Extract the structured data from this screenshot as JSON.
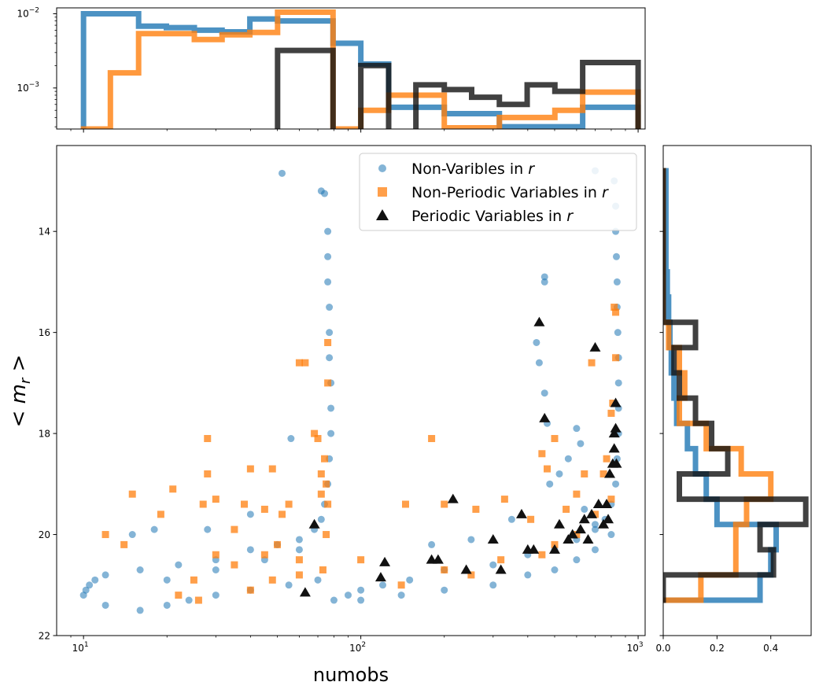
{
  "chart_data": {
    "type": "scatter",
    "xlabel": "numobs",
    "ylabel": "< m_r >",
    "xscale": "log",
    "xlim": [
      8,
      1060
    ],
    "ylim": [
      22,
      12.3
    ],
    "y_inverted": true,
    "grid": false,
    "legend_placement": "top-right",
    "x_ticks": [
      {
        "value": 10,
        "label": "10"
      },
      {
        "value": 100,
        "label": "10"
      },
      {
        "value": 1000,
        "label": "10"
      }
    ],
    "x_tick_exponents": [
      "1",
      "2",
      "3"
    ],
    "y_ticks": [
      14,
      16,
      18,
      20,
      22
    ],
    "colors": {
      "non_var": "#1f77b4",
      "non_per": "#ff7f0e",
      "periodic": "#111111"
    },
    "legend": [
      {
        "prefix": "Non-Varibles in ",
        "var": "r",
        "key": "non_var",
        "marker": "circle"
      },
      {
        "prefix": "Non-Periodic Variables in ",
        "var": "r",
        "key": "non_per",
        "marker": "square"
      },
      {
        "prefix": "Periodic Variables in ",
        "var": "r",
        "key": "periodic",
        "marker": "triangle"
      }
    ],
    "series_points": {
      "non_var": [
        [
          52,
          12.85
        ],
        [
          72,
          13.2
        ],
        [
          74,
          13.25
        ],
        [
          76,
          14.0
        ],
        [
          76,
          14.5
        ],
        [
          76,
          15.0
        ],
        [
          77,
          15.5
        ],
        [
          77,
          16.0
        ],
        [
          77,
          16.5
        ],
        [
          78,
          17.0
        ],
        [
          78,
          17.5
        ],
        [
          78,
          18.0
        ],
        [
          77,
          18.5
        ],
        [
          76,
          19.0
        ],
        [
          74,
          19.4
        ],
        [
          72,
          19.7
        ],
        [
          68,
          19.9
        ],
        [
          60,
          20.1
        ],
        [
          50,
          20.2
        ],
        [
          40,
          20.3
        ],
        [
          30,
          20.5
        ],
        [
          22,
          20.6
        ],
        [
          16,
          20.7
        ],
        [
          12,
          20.8
        ],
        [
          11,
          20.9
        ],
        [
          10.5,
          21.0
        ],
        [
          10.2,
          21.1
        ],
        [
          10,
          21.2
        ],
        [
          12,
          21.4
        ],
        [
          16,
          21.5
        ],
        [
          20,
          21.4
        ],
        [
          24,
          21.3
        ],
        [
          30,
          21.2
        ],
        [
          40,
          21.1
        ],
        [
          55,
          21.0
        ],
        [
          70,
          20.9
        ],
        [
          56,
          18.1
        ],
        [
          40,
          19.6
        ],
        [
          28,
          19.9
        ],
        [
          18,
          19.9
        ],
        [
          15,
          20.0
        ],
        [
          20,
          20.9
        ],
        [
          30,
          20.7
        ],
        [
          45,
          20.5
        ],
        [
          60,
          20.3
        ],
        [
          700,
          12.8
        ],
        [
          820,
          13.0
        ],
        [
          830,
          13.5
        ],
        [
          830,
          14.0
        ],
        [
          835,
          14.5
        ],
        [
          840,
          15.0
        ],
        [
          840,
          15.5
        ],
        [
          845,
          16.0
        ],
        [
          850,
          16.5
        ],
        [
          850,
          17.0
        ],
        [
          850,
          17.5
        ],
        [
          850,
          18.0
        ],
        [
          840,
          18.5
        ],
        [
          830,
          19.0
        ],
        [
          800,
          19.4
        ],
        [
          760,
          19.7
        ],
        [
          700,
          19.9
        ],
        [
          600,
          20.1
        ],
        [
          500,
          20.3
        ],
        [
          400,
          20.4
        ],
        [
          300,
          20.6
        ],
        [
          200,
          20.7
        ],
        [
          150,
          20.9
        ],
        [
          120,
          21.0
        ],
        [
          100,
          21.1
        ],
        [
          90,
          21.2
        ],
        [
          80,
          21.3
        ],
        [
          100,
          21.3
        ],
        [
          140,
          21.2
        ],
        [
          200,
          21.1
        ],
        [
          300,
          21.0
        ],
        [
          400,
          20.8
        ],
        [
          500,
          20.7
        ],
        [
          600,
          20.5
        ],
        [
          700,
          20.3
        ],
        [
          800,
          20.0
        ],
        [
          460,
          14.9
        ],
        [
          460,
          15.0
        ],
        [
          430,
          16.2
        ],
        [
          440,
          16.6
        ],
        [
          460,
          17.2
        ],
        [
          470,
          17.8
        ],
        [
          600,
          17.9
        ],
        [
          620,
          18.2
        ],
        [
          560,
          18.5
        ],
        [
          520,
          18.8
        ],
        [
          480,
          19.0
        ],
        [
          640,
          19.5
        ],
        [
          700,
          19.8
        ],
        [
          350,
          19.7
        ],
        [
          250,
          20.1
        ],
        [
          180,
          20.2
        ]
      ],
      "non_per": [
        [
          12,
          20.0
        ],
        [
          15,
          19.2
        ],
        [
          14,
          20.2
        ],
        [
          19,
          19.6
        ],
        [
          21,
          19.1
        ],
        [
          28,
          18.1
        ],
        [
          28,
          18.8
        ],
        [
          27,
          19.4
        ],
        [
          30,
          19.3
        ],
        [
          40,
          18.7
        ],
        [
          38,
          19.4
        ],
        [
          35,
          19.9
        ],
        [
          48,
          18.7
        ],
        [
          45,
          19.5
        ],
        [
          52,
          19.6
        ],
        [
          55,
          19.4
        ],
        [
          60,
          16.6
        ],
        [
          63,
          16.6
        ],
        [
          68,
          18.0
        ],
        [
          70,
          18.1
        ],
        [
          72,
          18.8
        ],
        [
          75,
          19.0
        ],
        [
          76,
          17.0
        ],
        [
          76,
          16.2
        ],
        [
          74,
          18.5
        ],
        [
          72,
          19.2
        ],
        [
          73,
          20.7
        ],
        [
          60,
          20.5
        ],
        [
          50,
          20.2
        ],
        [
          45,
          20.4
        ],
        [
          35,
          20.6
        ],
        [
          30,
          20.4
        ],
        [
          25,
          20.9
        ],
        [
          22,
          21.2
        ],
        [
          26,
          21.3
        ],
        [
          40,
          21.1
        ],
        [
          48,
          20.9
        ],
        [
          60,
          20.8
        ],
        [
          76,
          19.4
        ],
        [
          75,
          20.0
        ],
        [
          180,
          18.1
        ],
        [
          145,
          19.4
        ],
        [
          200,
          19.4
        ],
        [
          260,
          19.5
        ],
        [
          330,
          19.3
        ],
        [
          410,
          19.7
        ],
        [
          450,
          18.4
        ],
        [
          470,
          18.7
        ],
        [
          500,
          18.1
        ],
        [
          550,
          19.5
        ],
        [
          600,
          19.2
        ],
        [
          640,
          18.8
        ],
        [
          680,
          16.6
        ],
        [
          750,
          18.8
        ],
        [
          770,
          18.5
        ],
        [
          800,
          17.6
        ],
        [
          810,
          17.4
        ],
        [
          820,
          15.5
        ],
        [
          830,
          15.6
        ],
        [
          830,
          16.5
        ],
        [
          800,
          19.3
        ],
        [
          700,
          19.6
        ],
        [
          600,
          20.0
        ],
        [
          500,
          20.2
        ],
        [
          450,
          20.4
        ],
        [
          320,
          20.5
        ],
        [
          250,
          20.8
        ],
        [
          200,
          20.7
        ],
        [
          140,
          21.0
        ],
        [
          100,
          20.5
        ]
      ],
      "periodic": [
        [
          63,
          21.15
        ],
        [
          68,
          19.8
        ],
        [
          118,
          20.85
        ],
        [
          122,
          20.55
        ],
        [
          180,
          20.5
        ],
        [
          190,
          20.5
        ],
        [
          215,
          19.3
        ],
        [
          240,
          20.7
        ],
        [
          300,
          20.1
        ],
        [
          320,
          20.7
        ],
        [
          380,
          19.6
        ],
        [
          400,
          20.3
        ],
        [
          420,
          20.3
        ],
        [
          440,
          15.8
        ],
        [
          460,
          17.7
        ],
        [
          500,
          20.3
        ],
        [
          520,
          19.8
        ],
        [
          560,
          20.1
        ],
        [
          580,
          20.0
        ],
        [
          620,
          19.9
        ],
        [
          640,
          19.7
        ],
        [
          660,
          20.1
        ],
        [
          680,
          19.6
        ],
        [
          700,
          16.3
        ],
        [
          720,
          19.4
        ],
        [
          750,
          19.8
        ],
        [
          770,
          19.4
        ],
        [
          780,
          19.7
        ],
        [
          790,
          18.8
        ],
        [
          810,
          18.6
        ],
        [
          820,
          18.0
        ],
        [
          820,
          18.3
        ],
        [
          830,
          17.9
        ],
        [
          830,
          17.4
        ],
        [
          835,
          18.6
        ]
      ]
    },
    "top_histogram": {
      "yscale": "log",
      "ylim": [
        0.00028,
        0.012
      ],
      "y_ticks": [
        {
          "value": 0.001,
          "label": "10",
          "exp": "−3"
        },
        {
          "value": 0.01,
          "label": "10",
          "exp": "−2"
        }
      ],
      "bins": [
        10,
        12.5,
        15.8,
        19.9,
        25.1,
        31.6,
        39.8,
        50.1,
        63.1,
        79.4,
        100,
        126,
        158,
        200,
        251,
        316,
        398,
        501,
        631,
        794,
        1000
      ],
      "series": [
        {
          "key": "non_var",
          "values": [
            0.01,
            0.01,
            0.0068,
            0.0065,
            0.006,
            0.0057,
            0.0085,
            0.008,
            0.008,
            0.004,
            0.0021,
            0.00055,
            0.00055,
            0.00045,
            0.00045,
            0.0003,
            0.0003,
            0.0003,
            0.00055,
            0.00055
          ]
        },
        {
          "key": "non_per",
          "values": [
            0.00028,
            0.0016,
            0.0054,
            0.0054,
            0.0045,
            0.0052,
            0.0056,
            0.0105,
            0.0105,
            0.00028,
            0.0005,
            0.0008,
            0.0008,
            0.00029,
            0.00029,
            0.0004,
            0.0004,
            0.0005,
            0.00088,
            0.00088
          ]
        },
        {
          "key": "periodic",
          "values": [
            0,
            0,
            0,
            0,
            0,
            0,
            0,
            0.0032,
            0.0032,
            0,
            0.002,
            0,
            0.0011,
            0.00095,
            0.00075,
            0.0006,
            0.0011,
            0.0009,
            0.0022,
            0.0022
          ]
        }
      ]
    },
    "right_histogram": {
      "xlim": [
        0,
        0.55
      ],
      "x_ticks": [
        0.0,
        0.2,
        0.4
      ],
      "bins": [
        12.8,
        13.3,
        13.8,
        14.3,
        14.8,
        15.3,
        15.8,
        16.3,
        16.8,
        17.3,
        17.8,
        18.3,
        18.8,
        19.3,
        19.8,
        20.3,
        20.8,
        21.3
      ],
      "series": [
        {
          "key": "non_var",
          "values": [
            0.01,
            0.01,
            0.01,
            0.01,
            0.015,
            0.02,
            0.025,
            0.03,
            0.04,
            0.05,
            0.09,
            0.12,
            0.16,
            0.2,
            0.42,
            0.4,
            0.36
          ]
        },
        {
          "key": "non_per",
          "values": [
            0,
            0,
            0,
            0,
            0,
            0,
            0.02,
            0.06,
            0.08,
            0.06,
            0.16,
            0.29,
            0.4,
            0.31,
            0.27,
            0.27,
            0.14
          ]
        },
        {
          "key": "periodic",
          "values": [
            0,
            0,
            0,
            0,
            0,
            0,
            0.12,
            0.04,
            0.06,
            0.12,
            0.18,
            0.24,
            0.06,
            0.53,
            0.36,
            0.41,
            0
          ]
        }
      ]
    }
  }
}
